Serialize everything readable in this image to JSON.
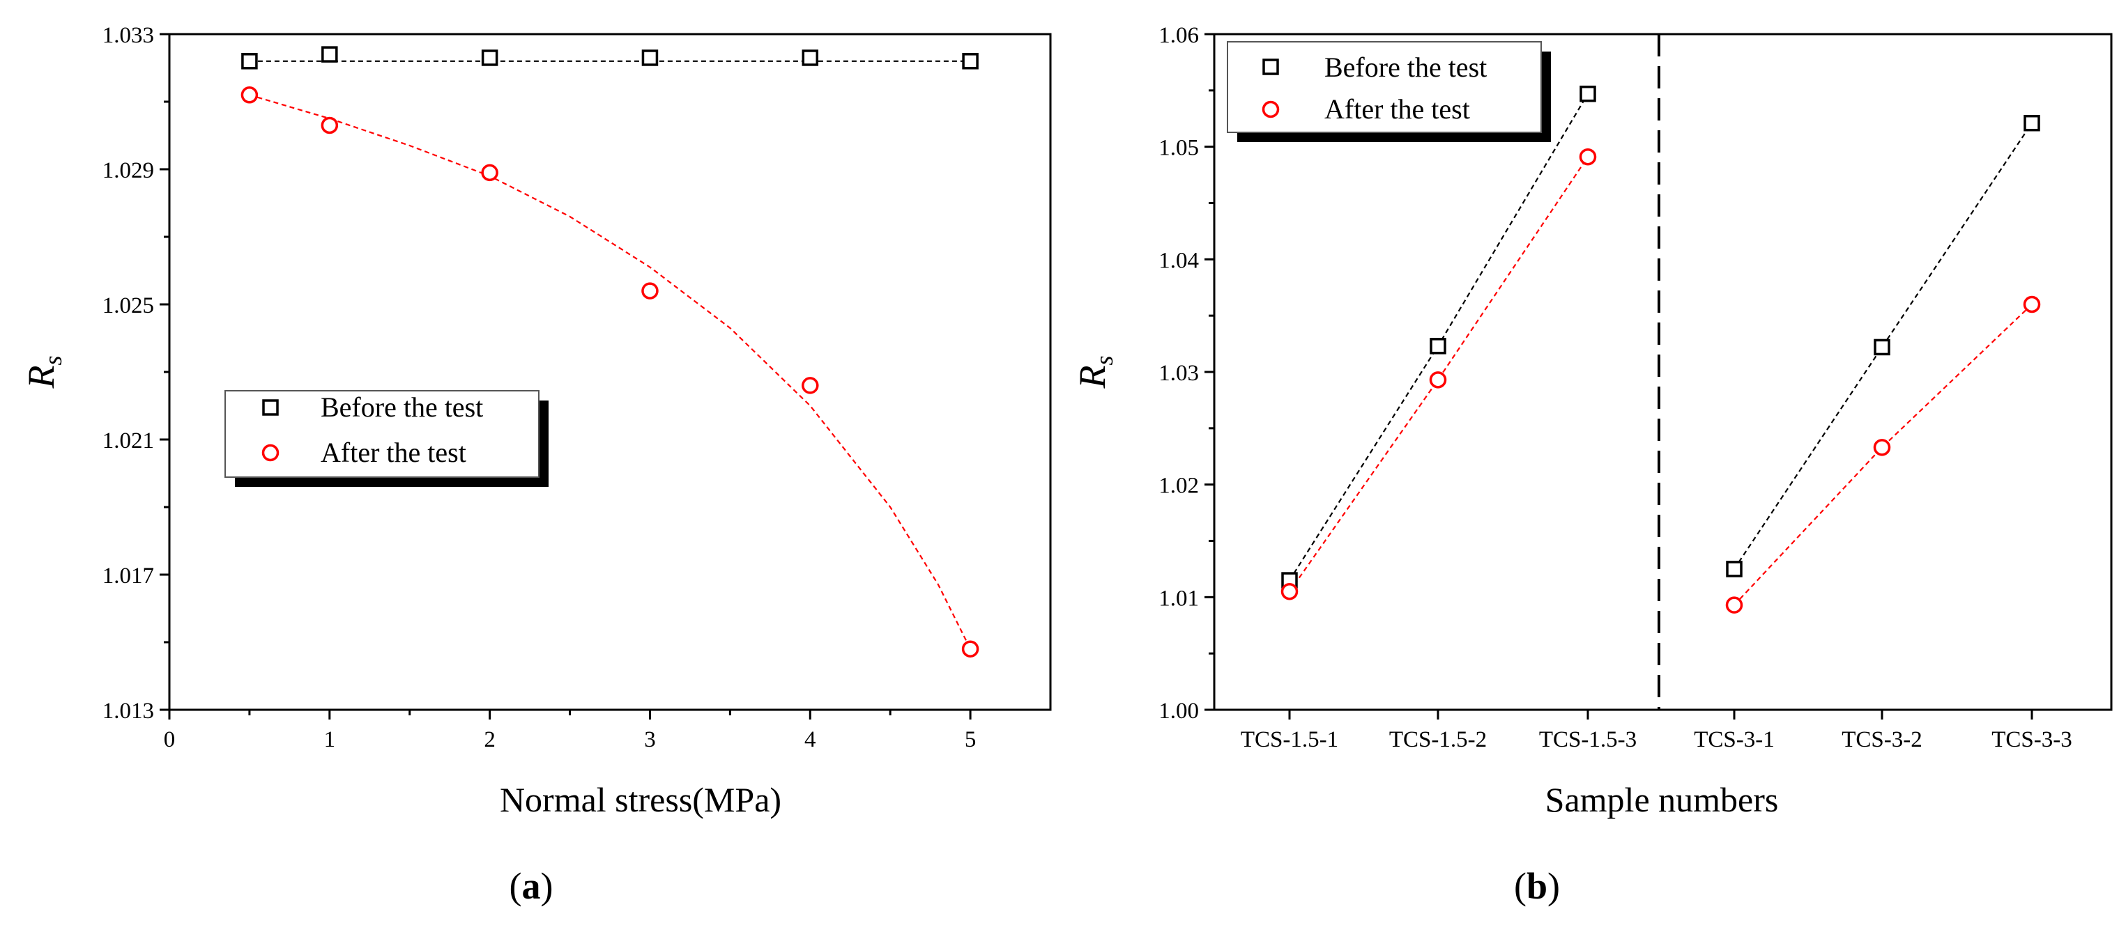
{
  "chart_data": [
    {
      "type": "scatter",
      "panel_label": "a",
      "xlabel": "Normal stress(MPa)",
      "ylabel": "R",
      "ylabel_subscript": "s",
      "xlim": [
        0,
        5.5
      ],
      "ylim": [
        1.013,
        1.033
      ],
      "xticks": [
        0,
        1,
        2,
        3,
        4,
        5
      ],
      "yticks": [
        1.013,
        1.017,
        1.021,
        1.025,
        1.029,
        1.033
      ],
      "ytick_labels": [
        "1.013",
        "1.017",
        "1.021",
        "1.025",
        "1.029",
        "1.033"
      ],
      "legend": {
        "placement": "middle-left"
      },
      "series": [
        {
          "name": "Before the test",
          "marker": "square",
          "color": "#000000",
          "x": [
            0.5,
            1,
            2,
            3,
            4,
            5
          ],
          "y": [
            1.0322,
            1.0324,
            1.0323,
            1.0323,
            1.0323,
            1.0322
          ],
          "fit_x": [
            0.5,
            5
          ],
          "fit_y": [
            1.0322,
            1.0322
          ]
        },
        {
          "name": "After the test",
          "marker": "circle",
          "color": "#ff0000",
          "x": [
            0.5,
            1,
            2,
            3,
            4,
            5
          ],
          "y": [
            1.0312,
            1.0303,
            1.0289,
            1.0254,
            1.0226,
            1.0148
          ],
          "fit_x": [
            0.5,
            1,
            1.5,
            2,
            2.5,
            3,
            3.5,
            4,
            4.5,
            4.8,
            5
          ],
          "fit_y": [
            1.0312,
            1.0305,
            1.0297,
            1.0288,
            1.0276,
            1.0261,
            1.0243,
            1.022,
            1.019,
            1.0167,
            1.0148
          ]
        }
      ]
    },
    {
      "type": "scatter",
      "panel_label": "b",
      "xlabel": "Sample numbers",
      "ylabel": "R",
      "ylabel_subscript": "s",
      "ylim": [
        1.0,
        1.06
      ],
      "yticks": [
        1.0,
        1.01,
        1.02,
        1.03,
        1.04,
        1.05,
        1.06
      ],
      "ytick_labels": [
        "1.00",
        "1.01",
        "1.02",
        "1.03",
        "1.04",
        "1.05",
        "1.06"
      ],
      "categories": [
        "TCS-1.5-1",
        "TCS-1.5-2",
        "TCS-1.5-3",
        "TCS-3-1",
        "TCS-3-2",
        "TCS-3-3"
      ],
      "divider_after_index": 2,
      "legend": {
        "placement": "top-left"
      },
      "series": [
        {
          "name": "Before the test",
          "marker": "square",
          "color": "#000000",
          "values": [
            1.0115,
            1.0323,
            1.0547,
            1.0125,
            1.0322,
            1.0521
          ]
        },
        {
          "name": "After the test",
          "marker": "circle",
          "color": "#ff0000",
          "values": [
            1.0105,
            1.0293,
            1.0491,
            1.0093,
            1.0233,
            1.036
          ]
        }
      ]
    }
  ]
}
